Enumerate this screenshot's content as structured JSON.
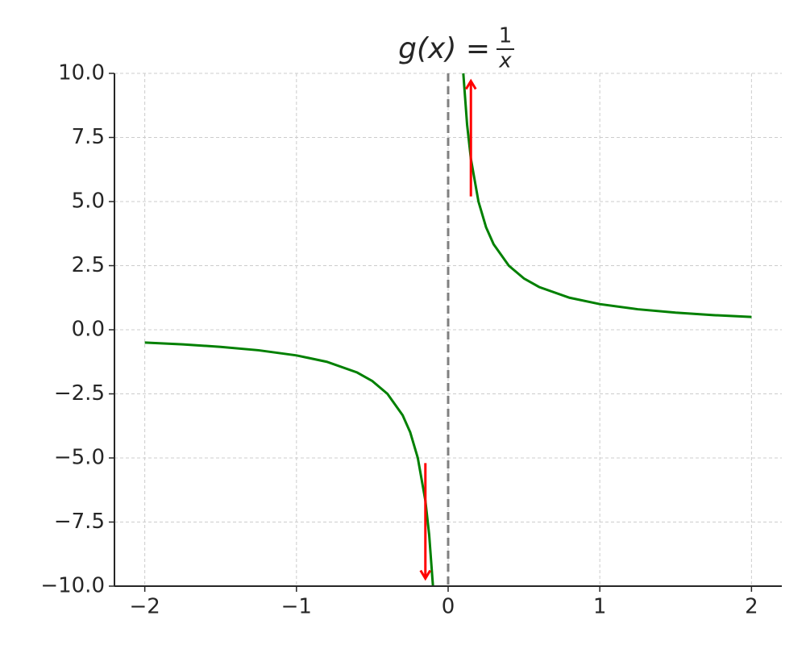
{
  "chart_data": {
    "type": "line",
    "title": {
      "lhs": "g(x) =",
      "numerator": "1",
      "denominator": "x"
    },
    "x": [
      -2,
      -1.75,
      -1.5,
      -1.25,
      -1,
      -0.8,
      -0.6,
      -0.5,
      -0.4,
      -0.3,
      -0.25,
      -0.2,
      -0.15,
      -0.125,
      -0.1,
      0,
      0.1,
      0.125,
      0.15,
      0.2,
      0.25,
      0.3,
      0.4,
      0.5,
      0.6,
      0.8,
      1,
      1.25,
      1.5,
      1.75,
      2
    ],
    "series": [
      {
        "color": "#008000",
        "values": [
          -0.5,
          -0.571,
          -0.667,
          -0.8,
          -1,
          -1.25,
          -1.667,
          -2,
          -2.5,
          -3.333,
          -4,
          -5,
          -6.667,
          -8,
          -10,
          null,
          10,
          8,
          6.667,
          5,
          4,
          3.333,
          2.5,
          2,
          1.667,
          1.25,
          1,
          0.8,
          0.667,
          0.571,
          0.5
        ]
      }
    ],
    "vlines": [
      {
        "x": 0,
        "color": "#808080",
        "style": "dashed"
      }
    ],
    "arrows": [
      {
        "x": 0.15,
        "y_start": 5.2,
        "y_end": 9.7,
        "color": "#ff0000"
      },
      {
        "x": -0.15,
        "y_start": -5.2,
        "y_end": -9.7,
        "color": "#ff0000"
      }
    ],
    "xlim": [
      -2.2,
      2.2
    ],
    "ylim": [
      -10,
      10
    ],
    "xticks": [
      {
        "value": -2,
        "label": "−2"
      },
      {
        "value": -1,
        "label": "−1"
      },
      0,
      1,
      2
    ],
    "yticks": [
      {
        "value": -10,
        "label": "−10.0"
      },
      {
        "value": -7.5,
        "label": "−7.5"
      },
      {
        "value": -5,
        "label": "−5.0"
      },
      {
        "value": -2.5,
        "label": "−2.5"
      },
      {
        "value": 0,
        "label": "0.0"
      },
      {
        "value": 2.5,
        "label": "2.5"
      },
      {
        "value": 5,
        "label": "5.0"
      },
      {
        "value": 7.5,
        "label": "7.5"
      },
      {
        "value": 10,
        "label": "10.0"
      }
    ],
    "grid": true
  }
}
